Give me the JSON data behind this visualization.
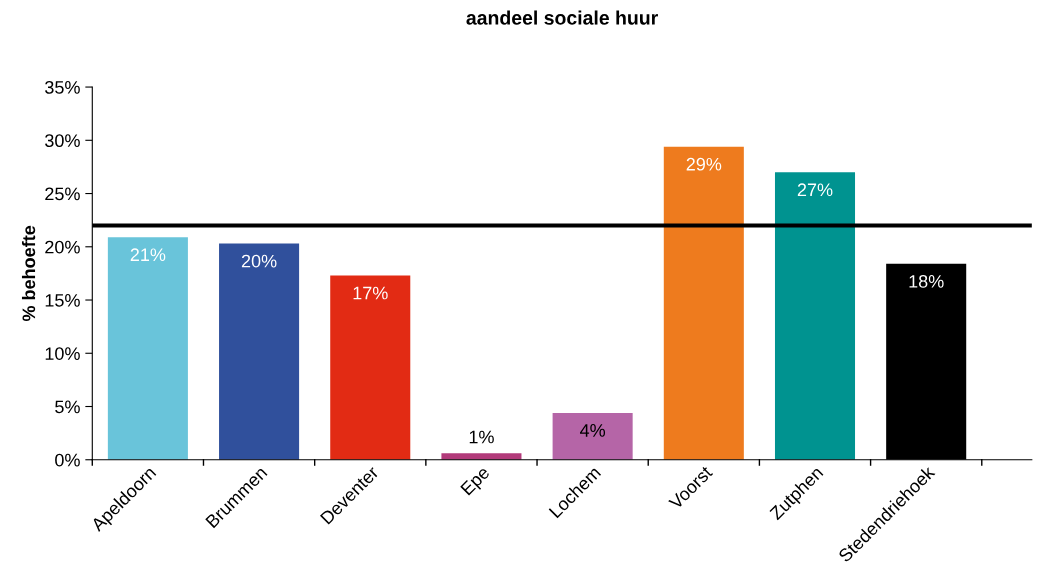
{
  "chart_data": {
    "type": "bar",
    "title": "aandeel sociale huur",
    "ylabel": "% behoefte",
    "categories": [
      "Apeldoorn",
      "Brummen",
      "Deventer",
      "Epe",
      "Lochem",
      "Voorst",
      "Zutphen",
      "Stedendriehoek"
    ],
    "values": [
      20.9,
      20.3,
      17.3,
      0.6,
      4.4,
      29.4,
      27.0,
      18.4
    ],
    "value_labels": [
      "21%",
      "20%",
      "17%",
      "1%",
      "4%",
      "29%",
      "27%",
      "18%"
    ],
    "colors": [
      "#69c4da",
      "#30509c",
      "#e22b14",
      "#b23a7a",
      "#b565a7",
      "#ee7b1e",
      "#009390",
      "#000000"
    ],
    "ylim": [
      0,
      35
    ],
    "yticks": [
      {
        "value": 0,
        "label": "0%"
      },
      {
        "value": 5,
        "label": "5%"
      },
      {
        "value": 10,
        "label": "10%"
      },
      {
        "value": 15,
        "label": "15%"
      },
      {
        "value": 20,
        "label": "20%"
      },
      {
        "value": 25,
        "label": "25%"
      },
      {
        "value": 30,
        "label": "30%"
      },
      {
        "value": 35,
        "label": "35%"
      }
    ],
    "ref_lines": [
      {
        "axis": "y",
        "value": 22.0,
        "color": "#000000"
      }
    ],
    "grid": false,
    "legend": false
  }
}
